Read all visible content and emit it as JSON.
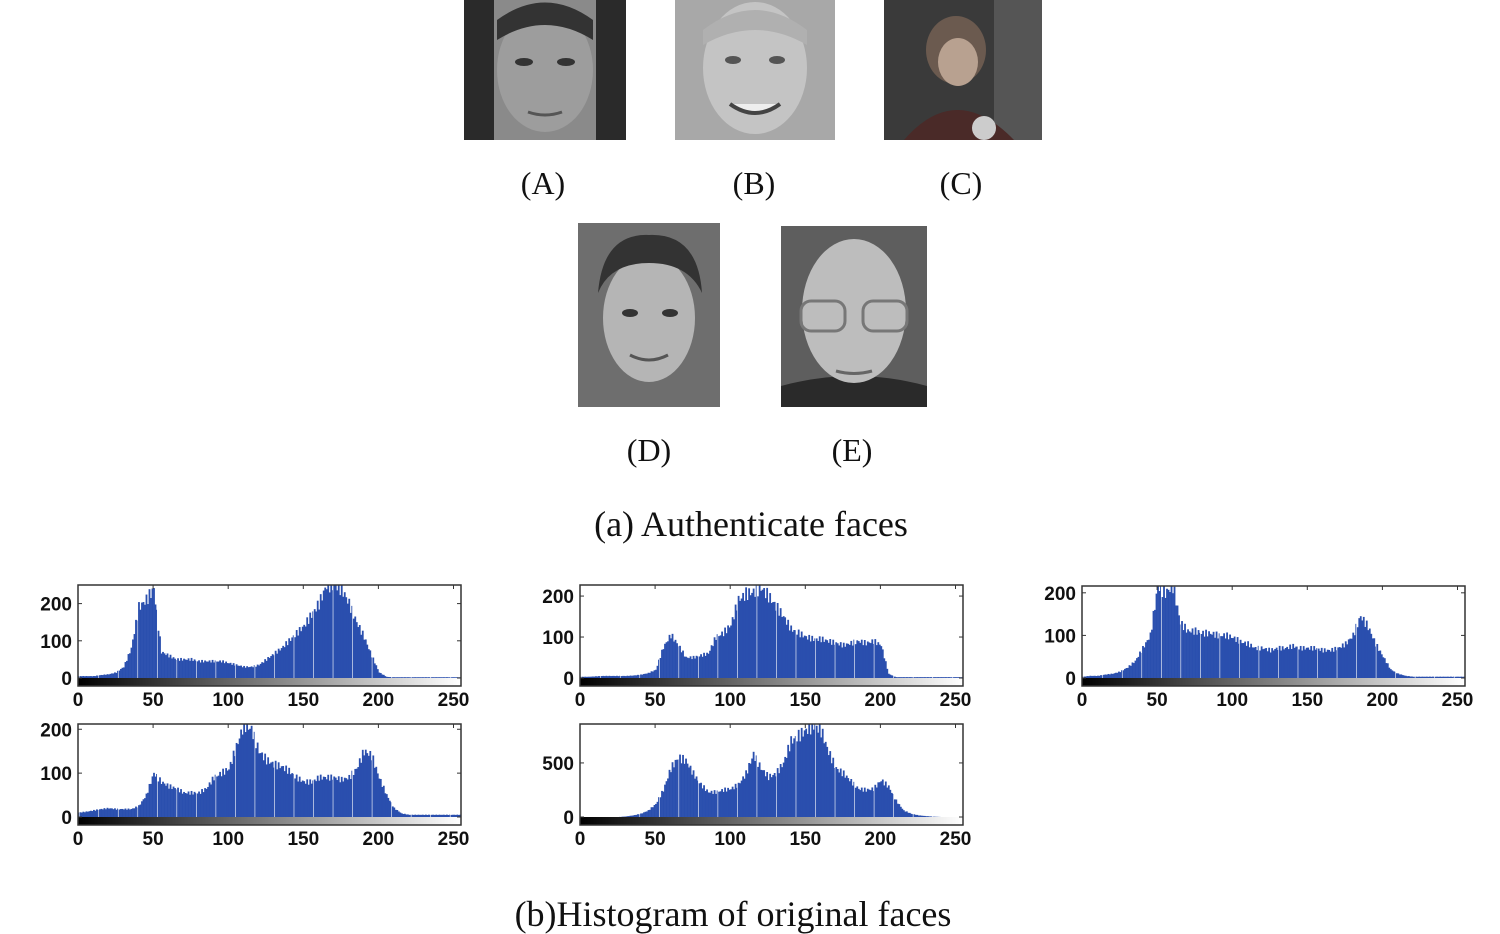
{
  "figure": {
    "photo_labels": [
      "(A)",
      "(B)",
      "(C)",
      "(D)",
      "(E)"
    ],
    "caption_a": "(a) Authenticate faces",
    "caption_b": "(b)Histogram of original faces"
  },
  "colors": {
    "bar": "#2a4fae",
    "axis": "#333333"
  },
  "chart_data": [
    {
      "type": "bar",
      "subject": "A",
      "xlim": [
        0,
        255
      ],
      "ylim": [
        0,
        250
      ],
      "xticks": [
        0,
        50,
        100,
        150,
        200,
        250
      ],
      "yticks": [
        0,
        100,
        200
      ],
      "bin_width": 5,
      "values": [
        5,
        5,
        5,
        8,
        10,
        15,
        30,
        80,
        190,
        210,
        240,
        70,
        60,
        50,
        50,
        50,
        45,
        45,
        45,
        45,
        40,
        35,
        30,
        30,
        35,
        50,
        65,
        80,
        100,
        120,
        140,
        170,
        200,
        250,
        250,
        240,
        200,
        150,
        110,
        60,
        15,
        3,
        2,
        2,
        2,
        2,
        2,
        2,
        2,
        2,
        2
      ]
    },
    {
      "type": "bar",
      "subject": "B",
      "xlim": [
        0,
        255
      ],
      "ylim": [
        0,
        227
      ],
      "xticks": [
        0,
        50,
        100,
        150,
        200,
        250
      ],
      "yticks": [
        0,
        100,
        200
      ],
      "bin_width": 5,
      "values": [
        3,
        3,
        4,
        5,
        5,
        5,
        5,
        6,
        8,
        12,
        20,
        75,
        105,
        80,
        50,
        50,
        55,
        60,
        100,
        110,
        130,
        190,
        205,
        210,
        220,
        200,
        175,
        150,
        120,
        110,
        100,
        95,
        95,
        90,
        85,
        80,
        85,
        90,
        85,
        90,
        80,
        10,
        2,
        2,
        2,
        2,
        2,
        2,
        2,
        2,
        2
      ]
    },
    {
      "type": "bar",
      "subject": "C",
      "xlim": [
        0,
        255
      ],
      "ylim": [
        0,
        216
      ],
      "xticks": [
        0,
        50,
        100,
        150,
        200,
        250
      ],
      "yticks": [
        0,
        100,
        200
      ],
      "bin_width": 5,
      "values": [
        3,
        5,
        5,
        8,
        10,
        15,
        25,
        40,
        70,
        100,
        216,
        200,
        216,
        130,
        110,
        110,
        105,
        105,
        100,
        100,
        95,
        85,
        80,
        70,
        70,
        65,
        70,
        70,
        75,
        70,
        70,
        70,
        65,
        65,
        70,
        80,
        100,
        145,
        120,
        80,
        50,
        20,
        10,
        5,
        3,
        3,
        3,
        3,
        3,
        3,
        3
      ]
    },
    {
      "type": "bar",
      "subject": "D",
      "xlim": [
        0,
        255
      ],
      "ylim": [
        0,
        212
      ],
      "xticks": [
        0,
        50,
        100,
        150,
        200,
        250
      ],
      "yticks": [
        0,
        100,
        200
      ],
      "bin_width": 5,
      "values": [
        10,
        12,
        15,
        18,
        20,
        18,
        18,
        18,
        25,
        50,
        100,
        80,
        70,
        65,
        55,
        55,
        55,
        65,
        90,
        100,
        110,
        160,
        212,
        200,
        150,
        130,
        120,
        115,
        105,
        90,
        80,
        80,
        90,
        90,
        90,
        85,
        90,
        110,
        150,
        140,
        90,
        50,
        20,
        8,
        5,
        5,
        5,
        5,
        5,
        5,
        5
      ]
    },
    {
      "type": "bar",
      "subject": "E",
      "xlim": [
        0,
        255
      ],
      "ylim": [
        0,
        860
      ],
      "xticks": [
        0,
        50,
        100,
        150,
        200,
        250
      ],
      "yticks": [
        0,
        500
      ],
      "bin_width": 5,
      "values": [
        0,
        0,
        0,
        0,
        0,
        0,
        5,
        15,
        30,
        60,
        120,
        250,
        450,
        550,
        520,
        400,
        300,
        230,
        230,
        250,
        260,
        300,
        400,
        580,
        450,
        370,
        400,
        500,
        700,
        750,
        800,
        850,
        800,
        600,
        450,
        400,
        330,
        260,
        250,
        260,
        340,
        280,
        150,
        60,
        30,
        15,
        8,
        3,
        0,
        0,
        0
      ]
    }
  ]
}
